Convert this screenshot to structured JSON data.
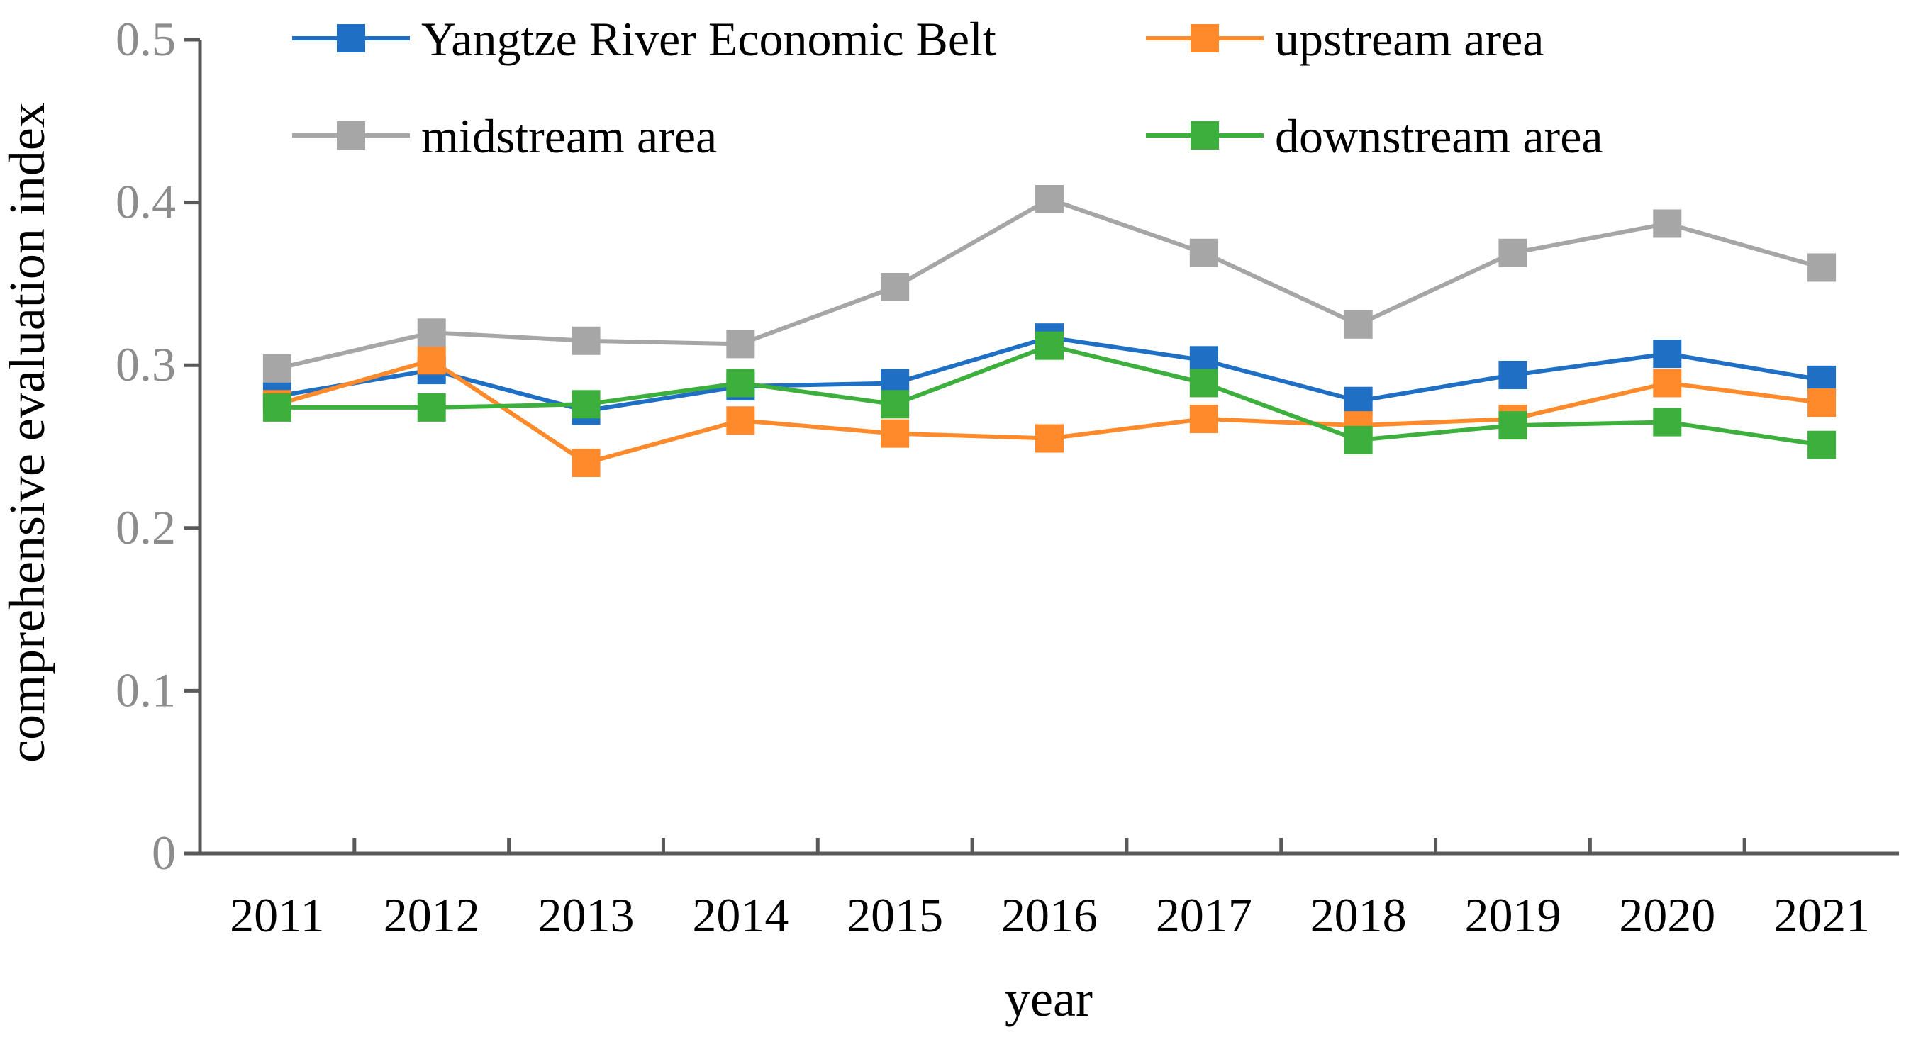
{
  "chart_data": {
    "type": "line",
    "title": "",
    "xlabel": "year",
    "ylabel": "comprehensive evaluation index",
    "ylim": [
      0,
      0.5
    ],
    "yticks": [
      "0",
      "0.1",
      "0.2",
      "0.3",
      "0.4",
      "0.5"
    ],
    "x": [
      "2011",
      "2012",
      "2013",
      "2014",
      "2015",
      "2016",
      "2017",
      "2018",
      "2019",
      "2020",
      "2021"
    ],
    "grid": false,
    "legend_position": "top",
    "series": [
      {
        "name": "Yangtze River Economic Belt",
        "color": "#1f6fc5",
        "values": [
          0.281,
          0.297,
          0.272,
          0.287,
          0.289,
          0.317,
          0.303,
          0.278,
          0.294,
          0.307,
          0.291
        ]
      },
      {
        "name": "upstream area",
        "color": "#ff8a2b",
        "values": [
          0.276,
          0.303,
          0.24,
          0.266,
          0.258,
          0.255,
          0.267,
          0.263,
          0.267,
          0.289,
          0.277
        ]
      },
      {
        "name": "midstream area",
        "color": "#a6a6a6",
        "values": [
          0.298,
          0.32,
          0.315,
          0.313,
          0.348,
          0.402,
          0.369,
          0.325,
          0.369,
          0.387,
          0.36
        ]
      },
      {
        "name": "downstream area",
        "color": "#3daf3d",
        "values": [
          0.274,
          0.274,
          0.276,
          0.289,
          0.276,
          0.312,
          0.289,
          0.254,
          0.263,
          0.265,
          0.251
        ]
      }
    ]
  }
}
